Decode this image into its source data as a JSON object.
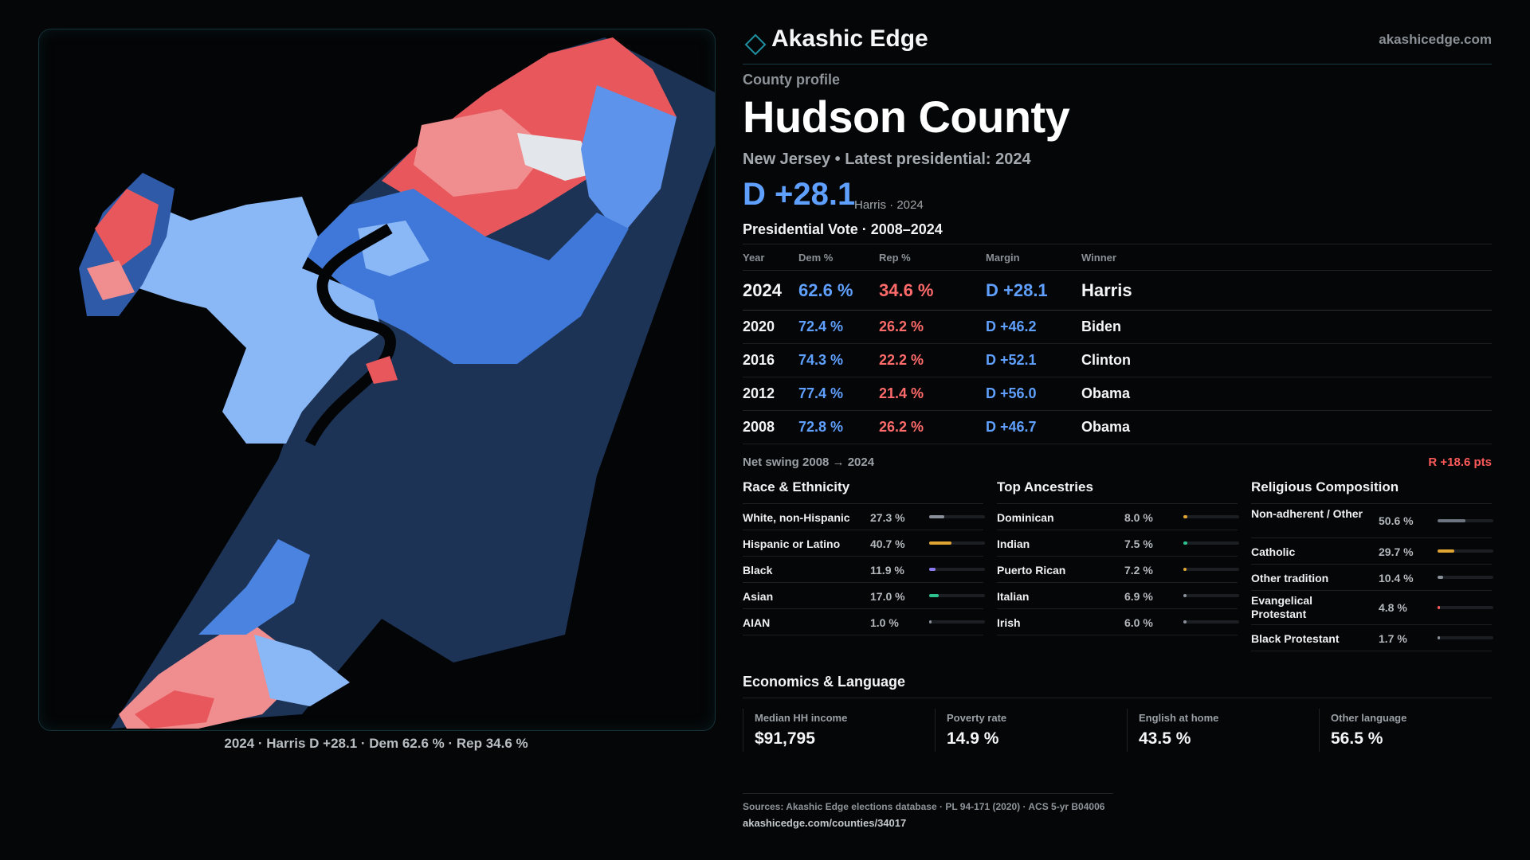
{
  "brand": {
    "name": "Akashic Edge",
    "url": "akashicedge.com"
  },
  "profile": {
    "subtitle": "County profile",
    "county": "Hudson County",
    "state_line": "New Jersey • Latest presidential: 2024",
    "margin": "D +28.1",
    "margin_note": "Harris · 2024"
  },
  "map": {
    "caption": "2024 · Harris D +28.1 · Dem 62.6 % · Rep 34.6 %"
  },
  "votes": {
    "title": "Presidential Vote · 2008–2024",
    "headers": {
      "year": "Year",
      "dem": "Dem %",
      "rep": "Rep %",
      "margin": "Margin",
      "winner": "Winner"
    },
    "rows": [
      {
        "year": "2024",
        "dem": "62.6 %",
        "rep": "34.6 %",
        "margin": "D +28.1",
        "winner": "Harris"
      },
      {
        "year": "2020",
        "dem": "72.4 %",
        "rep": "26.2 %",
        "margin": "D +46.2",
        "winner": "Biden"
      },
      {
        "year": "2016",
        "dem": "74.3 %",
        "rep": "22.2 %",
        "margin": "D +52.1",
        "winner": "Clinton"
      },
      {
        "year": "2012",
        "dem": "77.4 %",
        "rep": "21.4 %",
        "margin": "D +56.0",
        "winner": "Obama"
      },
      {
        "year": "2008",
        "dem": "72.8 %",
        "rep": "26.2 %",
        "margin": "D +46.7",
        "winner": "Obama"
      }
    ],
    "swing_label": "Net swing 2008 → 2024",
    "swing_value": "R +18.6 pts"
  },
  "race": {
    "title": "Race & Ethnicity",
    "items": [
      {
        "label": "White, non-Hispanic",
        "value": "27.3 %",
        "pct": 27.3,
        "color": "#8a9099"
      },
      {
        "label": "Hispanic or Latino",
        "value": "40.7 %",
        "pct": 40.7,
        "color": "#e0a532"
      },
      {
        "label": "Black",
        "value": "11.9 %",
        "pct": 11.9,
        "color": "#8a7cf0"
      },
      {
        "label": "Asian",
        "value": "17.0 %",
        "pct": 17.0,
        "color": "#2ec28f"
      },
      {
        "label": "AIAN",
        "value": "1.0 %",
        "pct": 1.0,
        "color": "#8a9099"
      }
    ]
  },
  "ancestry": {
    "title": "Top Ancestries",
    "items": [
      {
        "label": "Dominican",
        "value": "8.0 %",
        "pct": 8.0,
        "color": "#e0a532"
      },
      {
        "label": "Indian",
        "value": "7.5 %",
        "pct": 7.5,
        "color": "#2ec28f"
      },
      {
        "label": "Puerto Rican",
        "value": "7.2 %",
        "pct": 7.2,
        "color": "#e0a532"
      },
      {
        "label": "Italian",
        "value": "6.9 %",
        "pct": 6.9,
        "color": "#8a9099"
      },
      {
        "label": "Irish",
        "value": "6.0 %",
        "pct": 6.0,
        "color": "#8a9099"
      }
    ]
  },
  "religion": {
    "title": "Religious Composition",
    "items": [
      {
        "label": "Non-adherent / Other",
        "value": "50.6 %",
        "pct": 50.6,
        "color": "#6c7480"
      },
      {
        "label": "Catholic",
        "value": "29.7 %",
        "pct": 29.7,
        "color": "#e0a532"
      },
      {
        "label": "Other tradition",
        "value": "10.4 %",
        "pct": 10.4,
        "color": "#8a9099"
      },
      {
        "label": "Evangelical Protestant",
        "value": "4.8 %",
        "pct": 4.8,
        "color": "#ff5a5a"
      },
      {
        "label": "Black Protestant",
        "value": "1.7 %",
        "pct": 1.7,
        "color": "#8a9099"
      }
    ]
  },
  "economics": {
    "title": "Economics & Language",
    "cards": [
      {
        "label": "Median HH income",
        "value": "$91,795"
      },
      {
        "label": "Poverty rate",
        "value": "14.9 %"
      },
      {
        "label": "English at home",
        "value": "43.5 %"
      },
      {
        "label": "Other language",
        "value": "56.5 %"
      }
    ]
  },
  "sources": {
    "text": "Sources: Akashic Edge elections database · PL 94-171 (2020) · ACS 5-yr B04006",
    "url": "akashicedge.com/counties/34017"
  }
}
